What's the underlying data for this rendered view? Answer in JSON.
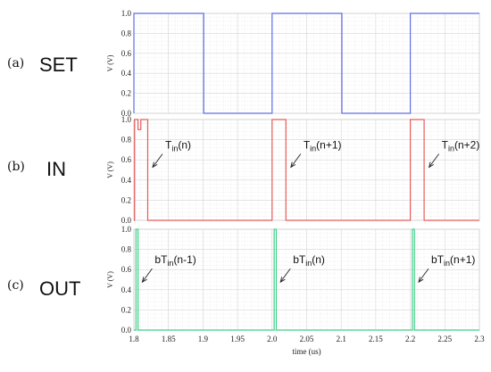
{
  "chart_data": [
    {
      "type": "line",
      "panel_letter": "(a)",
      "panel_name": "SET",
      "ylabel": "V (V)",
      "ylim": [
        0,
        1.0
      ],
      "yticks": [
        "0.0",
        "0.2",
        "0.4",
        "0.6",
        "0.8",
        "1.0"
      ],
      "xlim": [
        1.8,
        2.3
      ],
      "grid": true,
      "color": "#5f6ee6",
      "series": [
        {
          "x": [
            1.8,
            1.8,
            1.901,
            1.901,
            2.0,
            2.0,
            2.101,
            2.101,
            2.2,
            2.2,
            2.3
          ],
          "values": [
            0,
            1,
            1,
            0,
            0,
            1,
            1,
            0,
            0,
            1,
            1
          ]
        }
      ],
      "annotations": []
    },
    {
      "type": "line",
      "panel_letter": "(b)",
      "panel_name": "IN",
      "ylabel": "V (V)",
      "ylim": [
        0,
        1.0
      ],
      "yticks": [
        "0.0",
        "0.2",
        "0.4",
        "0.6",
        "0.8",
        "1.0"
      ],
      "xlim": [
        1.8,
        2.3
      ],
      "grid": true,
      "color": "#e85a5a",
      "series": [
        {
          "x": [
            1.8,
            1.801,
            1.801,
            1.806,
            1.806,
            1.81,
            1.81,
            1.82,
            1.82,
            2.0,
            2.0,
            2.005,
            2.005,
            2.02,
            2.02,
            2.2,
            2.2,
            2.205,
            2.205,
            2.22,
            2.22,
            2.3
          ],
          "values": [
            0,
            0,
            1,
            1,
            0.9,
            0.9,
            1,
            1,
            0,
            0,
            1,
            1,
            1,
            1,
            0,
            0,
            1,
            1,
            1,
            1,
            0,
            0
          ]
        }
      ],
      "annotations": [
        {
          "main": "T",
          "sub": "in",
          "rest": "(n)",
          "target_x": 1.822,
          "target_y": 0.5
        },
        {
          "main": "T",
          "sub": "in",
          "rest": "(n+1)",
          "target_x": 2.022,
          "target_y": 0.5
        },
        {
          "main": "T",
          "sub": "in",
          "rest": "(n+2)",
          "target_x": 2.222,
          "target_y": 0.5
        }
      ]
    },
    {
      "type": "line",
      "panel_letter": "(c)",
      "panel_name": "OUT",
      "ylabel": "V (V)",
      "ylim": [
        0,
        1.0
      ],
      "yticks": [
        "0.0",
        "0.2",
        "0.4",
        "0.6",
        "0.8",
        "1.0"
      ],
      "xlim": [
        1.8,
        2.3
      ],
      "xticks": [
        "1.8",
        "1.85",
        "1.9",
        "1.95",
        "2.0",
        "2.05",
        "2.1",
        "2.15",
        "2.2",
        "2.25",
        "2.3"
      ],
      "xlabel": "time (us)",
      "grid": true,
      "color": "#3fcf8a",
      "series": [
        {
          "x": [
            1.8,
            1.803,
            1.803,
            1.806,
            1.806,
            2.003,
            2.003,
            2.006,
            2.006,
            2.203,
            2.203,
            2.206,
            2.206,
            2.3
          ],
          "values": [
            0,
            0,
            1,
            1,
            0,
            0,
            1,
            1,
            0,
            0,
            1,
            1,
            0,
            0
          ]
        }
      ],
      "annotations": [
        {
          "main": "bT",
          "sub": "in",
          "rest": "(n-1)",
          "target_x": 1.807,
          "target_y": 0.45
        },
        {
          "main": "bT",
          "sub": "in",
          "rest": "(n)",
          "target_x": 2.007,
          "target_y": 0.45
        },
        {
          "main": "bT",
          "sub": "in",
          "rest": "(n+1)",
          "target_x": 2.207,
          "target_y": 0.45
        }
      ]
    }
  ]
}
